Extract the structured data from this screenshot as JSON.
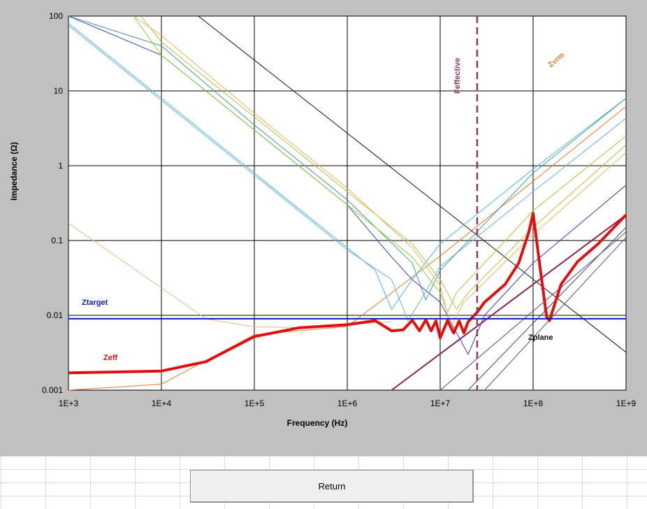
{
  "chart_data": {
    "type": "line",
    "title": "",
    "xlabel": "Frequency (Hz)",
    "ylabel": "Impedance (Ω)",
    "x_scale": "log",
    "y_scale": "log",
    "xlim": [
      1000,
      1000000000
    ],
    "ylim": [
      0.001,
      100
    ],
    "grid": true,
    "x_ticks": [
      "1E+3",
      "1E+4",
      "1E+5",
      "1E+6",
      "1E+7",
      "1E+8",
      "1E+9"
    ],
    "y_ticks": [
      "0.001",
      "0.01",
      "0.1",
      "1",
      "10",
      "100"
    ],
    "reference_lines": [
      {
        "name": "Ztarget",
        "orientation": "horizontal",
        "value": 0.009,
        "color": "#0b1fb3"
      },
      {
        "name": "Feffective",
        "orientation": "vertical",
        "value": 25000000,
        "color": "#8b3a62",
        "style": "dashed"
      }
    ],
    "series": [
      {
        "name": "Zeff",
        "color": "#e01010",
        "width": 4,
        "x": [
          1000,
          10000,
          30000,
          100000,
          300000,
          1000000,
          2000000,
          3000000,
          4000000,
          5000000,
          6000000,
          7000000,
          8000000,
          9000000,
          10000000,
          12000000,
          14000000,
          16000000,
          18000000,
          20000000,
          25000000,
          30000000,
          50000000,
          70000000,
          90000000,
          100000000,
          120000000,
          140000000,
          150000000,
          200000000,
          300000000,
          500000000,
          1000000000
        ],
        "y": [
          0.0017,
          0.0018,
          0.0024,
          0.0052,
          0.0068,
          0.0075,
          0.0085,
          0.0062,
          0.0064,
          0.0086,
          0.0062,
          0.0087,
          0.0062,
          0.0084,
          0.005,
          0.0085,
          0.0058,
          0.0084,
          0.0058,
          0.0082,
          0.011,
          0.015,
          0.026,
          0.05,
          0.13,
          0.23,
          0.04,
          0.0095,
          0.0085,
          0.026,
          0.052,
          0.09,
          0.22
        ]
      },
      {
        "name": "Zvrm",
        "color": "#e87a2e",
        "width": 1,
        "x": [
          1000,
          10000,
          100000,
          1000000,
          10000000,
          100000000,
          1000000000
        ],
        "y": [
          0.001,
          0.0012,
          0.0055,
          0.0071,
          0.062,
          0.62,
          6.2
        ]
      },
      {
        "name": "Zplane",
        "color": "#111111",
        "width": 1,
        "x": [
          25000,
          1000000000
        ],
        "y": [
          100,
          0.0032
        ]
      },
      {
        "name": "",
        "color": "#8b2252",
        "width": 2,
        "x": [
          3000000,
          1000000000
        ],
        "y": [
          0.001,
          0.22
        ]
      },
      {
        "name": "",
        "color": "#e9b98a",
        "width": 1,
        "x": [
          1000,
          30000,
          100000,
          300000,
          1000000,
          3000000
        ],
        "y": [
          0.17,
          0.009,
          0.007,
          0.0069,
          0.0075,
          0.0082
        ]
      },
      {
        "name": "",
        "color": "#3a3ad0",
        "width": 1,
        "x": [
          1000,
          10000,
          100000,
          1000000,
          3000000,
          5000000,
          10000000,
          20000000,
          30000000,
          100000000,
          1000000000
        ],
        "y": [
          100,
          30,
          3,
          0.3,
          0.06,
          0.03,
          0.015,
          0.003,
          0.01,
          0.05,
          0.55
        ]
      },
      {
        "name": "",
        "color": "#4ab6e0",
        "width": 1,
        "x": [
          1000,
          10000,
          100000,
          1000000,
          2000000,
          3000000,
          5000000,
          10000000,
          100000000,
          1000000000
        ],
        "y": [
          80,
          8,
          0.8,
          0.08,
          0.04,
          0.012,
          0.03,
          0.09,
          0.9,
          8
        ]
      },
      {
        "name": "",
        "color": "#6db0dc",
        "width": 1,
        "x": [
          1000,
          10000,
          100000,
          1000000,
          3000000,
          4500000,
          6000000,
          10000000,
          100000000,
          1000000000
        ],
        "y": [
          75,
          7.5,
          0.75,
          0.075,
          0.03,
          0.0085,
          0.015,
          0.045,
          0.45,
          4.3
        ]
      },
      {
        "name": "",
        "color": "#3f9a98",
        "width": 1,
        "x": [
          1000,
          10000,
          100000,
          1000000,
          5000000,
          7000000,
          10000000,
          100000000,
          1000000000
        ],
        "y": [
          100,
          40,
          3.5,
          0.35,
          0.05,
          0.016,
          0.04,
          0.8,
          8
        ]
      },
      {
        "name": "",
        "color": "#9acd32",
        "width": 1,
        "x": [
          5000,
          10000,
          100000,
          1000000,
          5000000,
          10000000,
          12000000,
          15000000,
          100000000,
          1000000000
        ],
        "y": [
          100,
          30,
          3,
          0.3,
          0.06,
          0.02,
          0.011,
          0.02,
          0.25,
          2.5
        ]
      },
      {
        "name": "",
        "color": "#b3c33a",
        "width": 1,
        "x": [
          6000,
          10000,
          100000,
          1000000,
          5000000,
          10000000,
          15000000,
          20000000,
          100000000,
          1000000000
        ],
        "y": [
          100,
          45,
          4.5,
          0.45,
          0.09,
          0.03,
          0.012,
          0.02,
          0.15,
          1.9
        ]
      },
      {
        "name": "",
        "color": "#f0b25a",
        "width": 1,
        "x": [
          5000,
          10000,
          100000,
          1000000,
          5000000,
          10000000,
          13000000,
          18000000,
          100000000,
          1000000000
        ],
        "y": [
          100,
          55,
          5,
          0.5,
          0.08,
          0.025,
          0.007,
          0.015,
          0.12,
          1.5
        ]
      },
      {
        "name": "",
        "color": "#555555",
        "width": 1,
        "x": [
          30000000,
          1000000000
        ],
        "y": [
          0.001,
          0.11
        ]
      },
      {
        "name": "",
        "color": "#2f4f4f",
        "width": 1,
        "x": [
          20000000,
          1000000000
        ],
        "y": [
          0.001,
          0.15
        ]
      },
      {
        "name": "",
        "color": "#5a3a9a",
        "width": 1,
        "x": [
          10000000,
          1000000000
        ],
        "y": [
          0.001,
          0.13
        ]
      }
    ],
    "annotations": [
      {
        "text": "Ztarget",
        "color": "#0b1fb3"
      },
      {
        "text": "Zeff",
        "color": "#e01010"
      },
      {
        "text": "Zvrm",
        "color": "#e87a2e"
      },
      {
        "text": "Zplane",
        "color": "#111111"
      },
      {
        "text": "Feffective",
        "color": "#8b3a62"
      }
    ]
  },
  "ui": {
    "return_label": "Return"
  }
}
